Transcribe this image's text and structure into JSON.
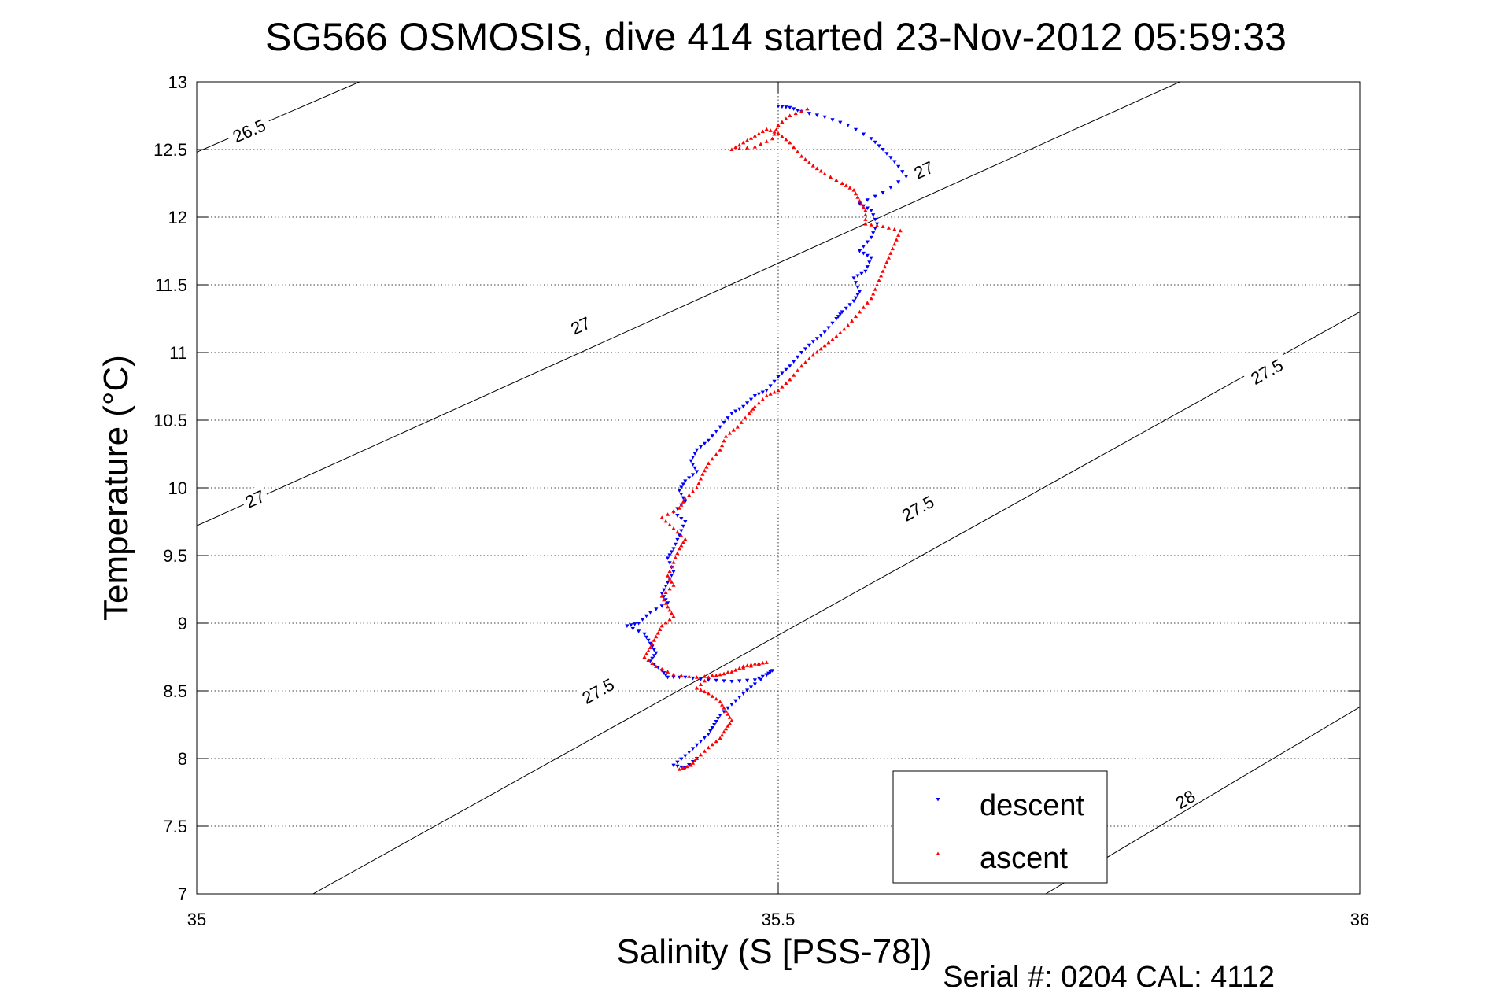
{
  "chart_data": {
    "type": "scatter",
    "title": "SG566 OSMOSIS, dive 414 started 23-Nov-2012 05:59:33",
    "xlabel": "Salinity (S [PSS-78])",
    "ylabel": "Temperature (°C)",
    "footer": "Serial #: 0204  CAL: 4112",
    "xlim": [
      35,
      36
    ],
    "ylim": [
      7,
      13
    ],
    "xticks": [
      35,
      35.5,
      36
    ],
    "xtick_labels": [
      "35",
      "35.5",
      "36"
    ],
    "yticks": [
      7,
      7.5,
      8,
      8.5,
      9,
      9.5,
      10,
      10.5,
      11,
      11.5,
      12,
      12.5,
      13
    ],
    "ytick_labels": [
      "7",
      "7.5",
      "8",
      "8.5",
      "9",
      "9.5",
      "10",
      "10.5",
      "11",
      "11.5",
      "12",
      "12.5",
      "13"
    ],
    "grid": true,
    "legend_position": "bottom-right",
    "contours": [
      {
        "label": "26.5",
        "points": [
          [
            35.0,
            12.48
          ],
          [
            35.14,
            13.0
          ]
        ],
        "label_at": [
          [
            35.045,
            12.64
          ]
        ]
      },
      {
        "label": "27",
        "points": [
          [
            35.0,
            9.72
          ],
          [
            36.0,
            13.6
          ]
        ],
        "label_at": [
          [
            35.05,
            9.92
          ],
          [
            35.33,
            11.2
          ],
          [
            35.625,
            12.35
          ]
        ]
      },
      {
        "label": "27.5",
        "points": [
          [
            35.1,
            7.0
          ],
          [
            36.0,
            11.3
          ]
        ],
        "label_at": [
          [
            35.345,
            8.5
          ],
          [
            35.62,
            9.85
          ],
          [
            35.92,
            10.86
          ]
        ]
      },
      {
        "label": "28",
        "points": [
          [
            35.73,
            7.0
          ],
          [
            36.0,
            8.38
          ]
        ],
        "label_at": [
          [
            35.85,
            7.7
          ]
        ]
      }
    ],
    "series": [
      {
        "name": "descent",
        "color": "#0000ff",
        "marker": "triangle-down",
        "points": [
          [
            35.5,
            12.82
          ],
          [
            35.51,
            12.81
          ],
          [
            35.52,
            12.78
          ],
          [
            35.54,
            12.74
          ],
          [
            35.56,
            12.68
          ],
          [
            35.58,
            12.58
          ],
          [
            35.59,
            12.5
          ],
          [
            35.6,
            12.41
          ],
          [
            35.61,
            12.3
          ],
          [
            35.59,
            12.18
          ],
          [
            35.57,
            12.1
          ],
          [
            35.58,
            12.05
          ],
          [
            35.585,
            11.95
          ],
          [
            35.58,
            11.85
          ],
          [
            35.57,
            11.75
          ],
          [
            35.58,
            11.7
          ],
          [
            35.575,
            11.6
          ],
          [
            35.565,
            11.55
          ],
          [
            35.57,
            11.45
          ],
          [
            35.565,
            11.38
          ],
          [
            35.555,
            11.3
          ],
          [
            35.55,
            11.25
          ],
          [
            35.54,
            11.15
          ],
          [
            35.53,
            11.08
          ],
          [
            35.52,
            11.0
          ],
          [
            35.51,
            10.9
          ],
          [
            35.5,
            10.82
          ],
          [
            35.49,
            10.72
          ],
          [
            35.48,
            10.68
          ],
          [
            35.47,
            10.6
          ],
          [
            35.46,
            10.55
          ],
          [
            35.45,
            10.45
          ],
          [
            35.44,
            10.35
          ],
          [
            35.43,
            10.28
          ],
          [
            35.425,
            10.2
          ],
          [
            35.43,
            10.12
          ],
          [
            35.42,
            10.05
          ],
          [
            35.415,
            9.98
          ],
          [
            35.42,
            9.9
          ],
          [
            35.41,
            9.82
          ],
          [
            35.42,
            9.75
          ],
          [
            35.415,
            9.65
          ],
          [
            35.41,
            9.55
          ],
          [
            35.405,
            9.48
          ],
          [
            35.41,
            9.38
          ],
          [
            35.405,
            9.3
          ],
          [
            35.4,
            9.22
          ],
          [
            35.405,
            9.15
          ],
          [
            35.39,
            9.08
          ],
          [
            35.38,
            9.0
          ],
          [
            35.37,
            8.98
          ],
          [
            35.385,
            8.92
          ],
          [
            35.39,
            8.85
          ],
          [
            35.395,
            8.78
          ],
          [
            35.39,
            8.72
          ],
          [
            35.4,
            8.65
          ],
          [
            35.405,
            8.6
          ],
          [
            35.42,
            8.6
          ],
          [
            35.44,
            8.58
          ],
          [
            35.46,
            8.57
          ],
          [
            35.48,
            8.58
          ],
          [
            35.49,
            8.62
          ],
          [
            35.495,
            8.65
          ],
          [
            35.48,
            8.55
          ],
          [
            35.47,
            8.48
          ],
          [
            35.46,
            8.4
          ],
          [
            35.45,
            8.32
          ],
          [
            35.445,
            8.25
          ],
          [
            35.44,
            8.18
          ],
          [
            35.43,
            8.1
          ],
          [
            35.42,
            8.02
          ],
          [
            35.41,
            7.95
          ],
          [
            35.42,
            7.93
          ],
          [
            35.43,
            8.0
          ]
        ]
      },
      {
        "name": "ascent",
        "color": "#ff0000",
        "marker": "triangle-up",
        "points": [
          [
            35.415,
            7.92
          ],
          [
            35.425,
            7.95
          ],
          [
            35.43,
            8.0
          ],
          [
            35.44,
            8.08
          ],
          [
            35.45,
            8.15
          ],
          [
            35.455,
            8.22
          ],
          [
            35.46,
            8.28
          ],
          [
            35.455,
            8.35
          ],
          [
            35.45,
            8.42
          ],
          [
            35.44,
            8.48
          ],
          [
            35.43,
            8.52
          ],
          [
            35.44,
            8.6
          ],
          [
            35.46,
            8.64
          ],
          [
            35.47,
            8.68
          ],
          [
            35.48,
            8.7
          ],
          [
            35.49,
            8.71
          ],
          [
            35.47,
            8.67
          ],
          [
            35.45,
            8.62
          ],
          [
            35.43,
            8.6
          ],
          [
            35.41,
            8.62
          ],
          [
            35.395,
            8.68
          ],
          [
            35.385,
            8.75
          ],
          [
            35.39,
            8.82
          ],
          [
            35.395,
            8.9
          ],
          [
            35.4,
            8.98
          ],
          [
            35.41,
            9.05
          ],
          [
            35.405,
            9.12
          ],
          [
            35.4,
            9.2
          ],
          [
            35.41,
            9.28
          ],
          [
            35.405,
            9.35
          ],
          [
            35.41,
            9.45
          ],
          [
            35.415,
            9.55
          ],
          [
            35.42,
            9.62
          ],
          [
            35.41,
            9.7
          ],
          [
            35.4,
            9.78
          ],
          [
            35.415,
            9.85
          ],
          [
            35.42,
            9.92
          ],
          [
            35.43,
            10.0
          ],
          [
            35.435,
            10.1
          ],
          [
            35.44,
            10.18
          ],
          [
            35.45,
            10.28
          ],
          [
            35.455,
            10.38
          ],
          [
            35.465,
            10.45
          ],
          [
            35.475,
            10.55
          ],
          [
            35.48,
            10.6
          ],
          [
            35.49,
            10.68
          ],
          [
            35.5,
            10.72
          ],
          [
            35.51,
            10.8
          ],
          [
            35.52,
            10.9
          ],
          [
            35.53,
            10.98
          ],
          [
            35.54,
            11.05
          ],
          [
            35.55,
            11.12
          ],
          [
            35.56,
            11.2
          ],
          [
            35.57,
            11.3
          ],
          [
            35.58,
            11.4
          ],
          [
            35.585,
            11.5
          ],
          [
            35.59,
            11.6
          ],
          [
            35.595,
            11.7
          ],
          [
            35.6,
            11.8
          ],
          [
            35.605,
            11.9
          ],
          [
            35.59,
            11.93
          ],
          [
            35.575,
            11.95
          ],
          [
            35.575,
            12.05
          ],
          [
            35.57,
            12.12
          ],
          [
            35.565,
            12.2
          ],
          [
            35.555,
            12.25
          ],
          [
            35.54,
            12.32
          ],
          [
            35.53,
            12.38
          ],
          [
            35.52,
            12.45
          ],
          [
            35.51,
            12.55
          ],
          [
            35.5,
            12.62
          ],
          [
            35.49,
            12.65
          ],
          [
            35.48,
            12.6
          ],
          [
            35.47,
            12.55
          ],
          [
            35.46,
            12.5
          ],
          [
            35.48,
            12.52
          ],
          [
            35.495,
            12.58
          ],
          [
            35.5,
            12.68
          ],
          [
            35.51,
            12.75
          ],
          [
            35.525,
            12.8
          ]
        ]
      }
    ]
  }
}
